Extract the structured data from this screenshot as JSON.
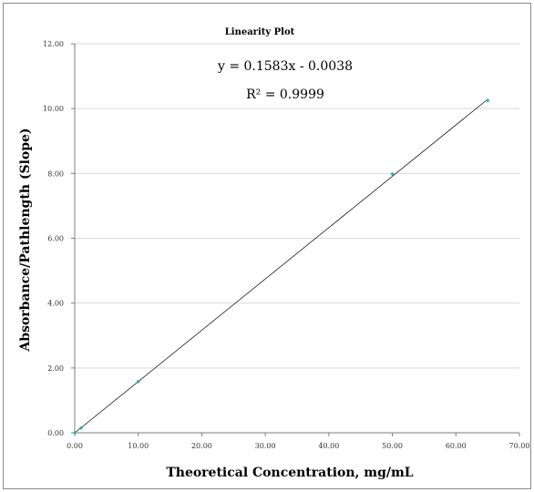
{
  "chart_data": {
    "type": "scatter",
    "title": "Linearity Plot",
    "xlabel": "Theoretical Concentration, mg/mL",
    "ylabel": "Absorbance/Pathlength (Slope)",
    "xlim": [
      0,
      70
    ],
    "ylim": [
      0,
      12
    ],
    "xticks": [
      0,
      10,
      20,
      30,
      40,
      50,
      60,
      70
    ],
    "yticks": [
      0,
      2,
      4,
      6,
      8,
      10,
      12
    ],
    "xtick_labels": [
      "0.00",
      "10.00",
      "20.00",
      "30.00",
      "40.00",
      "50.00",
      "60.00",
      "70.00"
    ],
    "ytick_labels": [
      "0.00",
      "2.00",
      "4.00",
      "6.00",
      "8.00",
      "10.00",
      "12.00"
    ],
    "grid": "horizontal",
    "x": [
      0,
      1,
      10,
      50,
      65
    ],
    "y": [
      0.0,
      0.15,
      1.58,
      7.98,
      10.25
    ],
    "trendline": {
      "slope": 0.1583,
      "intercept": -0.0038
    },
    "annotations": [
      "y = 0.1583x - 0.0038",
      "R² = 0.9999"
    ],
    "colors": {
      "marker": "#2bb3a0",
      "trendline": "#000000",
      "grid": "#d9d9d9"
    }
  }
}
